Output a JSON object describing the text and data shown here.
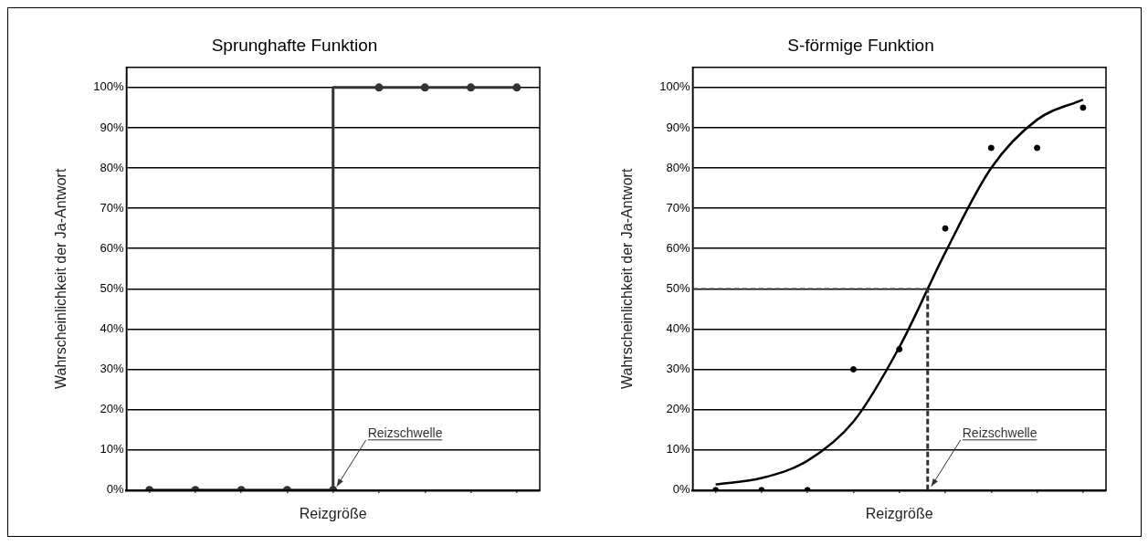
{
  "chart_data": [
    {
      "type": "step",
      "title": "Sprunghafte Funktion",
      "xlabel": "Reizgröße",
      "ylabel": "Wahrscheinlichkeit der Ja-Antwort",
      "categories": [
        null,
        null,
        null,
        null,
        null,
        null,
        null,
        null,
        null
      ],
      "ylim": [
        0,
        105
      ],
      "yticks": [
        {
          "value": 0,
          "label": "0%"
        },
        {
          "value": 10,
          "label": "10%"
        },
        {
          "value": 20,
          "label": "20%"
        },
        {
          "value": 30,
          "label": "30%"
        },
        {
          "value": 40,
          "label": "40%"
        },
        {
          "value": 50,
          "label": "50%"
        },
        {
          "value": 60,
          "label": "60%"
        },
        {
          "value": 70,
          "label": "70%"
        },
        {
          "value": 80,
          "label": "80%"
        },
        {
          "value": 90,
          "label": "90%"
        },
        {
          "value": 100,
          "label": "100%"
        }
      ],
      "grid": "y",
      "tick_labels": "y",
      "marker": "circle",
      "series": [
        {
          "color": "#333333",
          "values": [
            0,
            0,
            0,
            0,
            0,
            100,
            100,
            100,
            100
          ]
        }
      ],
      "annotations": [
        "Reizschwelle"
      ]
    },
    {
      "type": "scatter",
      "title": "S-förmige Funktion",
      "xlabel": "Reizgröße",
      "ylabel": "Wahrscheinlichkeit der Ja-Antwort",
      "categories": [
        null,
        null,
        null,
        null,
        null,
        null,
        null,
        null,
        null
      ],
      "ylim": [
        0,
        105
      ],
      "yticks": [
        {
          "value": 0,
          "label": "0%"
        },
        {
          "value": 10,
          "label": "10%"
        },
        {
          "value": 20,
          "label": "20%"
        },
        {
          "value": 30,
          "label": "30%"
        },
        {
          "value": 40,
          "label": "40%"
        },
        {
          "value": 50,
          "label": "50%"
        },
        {
          "value": 60,
          "label": "60%"
        },
        {
          "value": 70,
          "label": "70%"
        },
        {
          "value": 80,
          "label": "80%"
        },
        {
          "value": 90,
          "label": "90%"
        },
        {
          "value": 100,
          "label": "100%"
        }
      ],
      "grid": "y",
      "tick_labels": "y",
      "marker": "circle",
      "series": [
        {
          "type": "line",
          "color": "#000000",
          "marker": "none",
          "values": [
            1.4,
            3,
            7.3,
            17,
            35.5,
            59,
            80,
            92,
            97
          ]
        },
        {
          "color": "#000000",
          "values": [
            0,
            0,
            0,
            30,
            35,
            65,
            85,
            85,
            95
          ]
        }
      ],
      "ref_lines": [
        {
          "axis": "y",
          "value": 50,
          "line_style": "dashed",
          "color": "#333333"
        }
      ],
      "annotations": [
        "Reizschwelle"
      ]
    }
  ]
}
